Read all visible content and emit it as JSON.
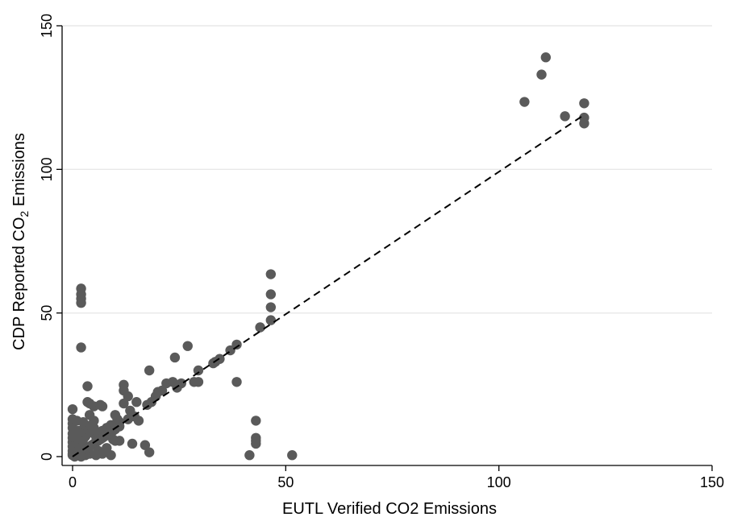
{
  "chart_data": {
    "type": "scatter",
    "xlabel": "EUTL Verified CO2 Emissions",
    "ylabel_parts": {
      "before": "CDP Reported CO",
      "subscript": "2",
      "after": " Emissions"
    },
    "xlim": [
      0,
      150
    ],
    "ylim": [
      0,
      150
    ],
    "xticks": [
      0,
      50,
      100,
      150
    ],
    "yticks": [
      0,
      50,
      100,
      150
    ],
    "grid": "horizontal",
    "legend": "none",
    "marker_color": "#5a5a5a",
    "fit_line": {
      "style": "dashed",
      "color": "#000000",
      "x": [
        0,
        120
      ],
      "y": [
        0,
        119
      ]
    },
    "points": [
      [
        106,
        123.5
      ],
      [
        110,
        133
      ],
      [
        111,
        139
      ],
      [
        115.5,
        118.5
      ],
      [
        120,
        123
      ],
      [
        120,
        118
      ],
      [
        120,
        116
      ],
      [
        46.5,
        63.5
      ],
      [
        46.5,
        56.5
      ],
      [
        46.5,
        52
      ],
      [
        46.5,
        47.5
      ],
      [
        44,
        45
      ],
      [
        43,
        12.5
      ],
      [
        43,
        6.5
      ],
      [
        43,
        5.5
      ],
      [
        43,
        4.5
      ],
      [
        41.5,
        0.5
      ],
      [
        51.5,
        0.5
      ],
      [
        38.5,
        39
      ],
      [
        37,
        37
      ],
      [
        38.5,
        26
      ],
      [
        33.5,
        33
      ],
      [
        34.5,
        34
      ],
      [
        33,
        32.5
      ],
      [
        29.5,
        30
      ],
      [
        28.5,
        26
      ],
      [
        29.5,
        26
      ],
      [
        27,
        38.5
      ],
      [
        24,
        34.5
      ],
      [
        2,
        58.5
      ],
      [
        2,
        56.5
      ],
      [
        2,
        55
      ],
      [
        2,
        53.5
      ],
      [
        2,
        38
      ],
      [
        18,
        30
      ],
      [
        22,
        25.5
      ],
      [
        23.5,
        26
      ],
      [
        25.5,
        25.5
      ],
      [
        24.5,
        24
      ],
      [
        21,
        23
      ],
      [
        20,
        22.5
      ],
      [
        19.5,
        21
      ],
      [
        18.5,
        19
      ],
      [
        17.5,
        18
      ],
      [
        15,
        19
      ],
      [
        12,
        25
      ],
      [
        12,
        23
      ],
      [
        13,
        21
      ],
      [
        12,
        18.5
      ],
      [
        13.5,
        16
      ],
      [
        14.5,
        14
      ],
      [
        15.5,
        12.5
      ],
      [
        13,
        13
      ],
      [
        14,
        4.5
      ],
      [
        17,
        4
      ],
      [
        18,
        1.5
      ],
      [
        10,
        14.5
      ],
      [
        10.5,
        13
      ],
      [
        11,
        12
      ],
      [
        9,
        11
      ],
      [
        8,
        10
      ],
      [
        7,
        9
      ],
      [
        6.5,
        8
      ],
      [
        5.5,
        7
      ],
      [
        10,
        5.5
      ],
      [
        11,
        5.5
      ],
      [
        9.5,
        6
      ],
      [
        8,
        3
      ],
      [
        9,
        0.5
      ],
      [
        5,
        17.5
      ],
      [
        6.5,
        18
      ],
      [
        7,
        17.5
      ],
      [
        3.5,
        19
      ],
      [
        4,
        18.5
      ],
      [
        3.5,
        24.5
      ],
      [
        4,
        14.5
      ],
      [
        5,
        12.5
      ],
      [
        4.5,
        11
      ],
      [
        5,
        10
      ],
      [
        4,
        9
      ],
      [
        3.5,
        8
      ],
      [
        3,
        7
      ],
      [
        2.5,
        6
      ],
      [
        2,
        5
      ],
      [
        1.5,
        4
      ],
      [
        1,
        3
      ],
      [
        0.5,
        2
      ],
      [
        0,
        1
      ],
      [
        0,
        16.5
      ],
      [
        0,
        13
      ],
      [
        0,
        11.5
      ],
      [
        0,
        10
      ],
      [
        0,
        8
      ],
      [
        0,
        6.5
      ],
      [
        0,
        5
      ],
      [
        0,
        3.5
      ],
      [
        0,
        2
      ],
      [
        0,
        0.5
      ],
      [
        0.5,
        0
      ],
      [
        1,
        0.5
      ],
      [
        1.5,
        1
      ],
      [
        2,
        1.5
      ],
      [
        2.5,
        2
      ],
      [
        3,
        2.5
      ],
      [
        3.5,
        3
      ],
      [
        4,
        3.5
      ],
      [
        4.5,
        4
      ],
      [
        5,
        4.5
      ],
      [
        5.5,
        5
      ],
      [
        6,
        5.5
      ],
      [
        6.5,
        6
      ],
      [
        7,
        6.5
      ],
      [
        7.5,
        7
      ],
      [
        8,
        7.5
      ],
      [
        8.5,
        8
      ],
      [
        9,
        8.5
      ],
      [
        9.5,
        9
      ],
      [
        10,
        9.5
      ],
      [
        11,
        10.5
      ],
      [
        2,
        8.5
      ],
      [
        1.5,
        9
      ],
      [
        1,
        7
      ],
      [
        3,
        11
      ],
      [
        2.5,
        12
      ],
      [
        1,
        12.5
      ],
      [
        4,
        1
      ],
      [
        3,
        0.5
      ],
      [
        6,
        2
      ],
      [
        5.5,
        0.5
      ],
      [
        7,
        1
      ],
      [
        2,
        0
      ],
      [
        1.5,
        2.5
      ]
    ]
  }
}
